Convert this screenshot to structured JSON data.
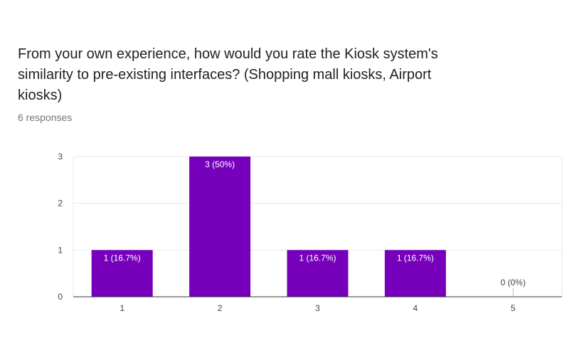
{
  "question": {
    "line1": "From your own experience, how would you rate the Kiosk system's",
    "line2": "similarity to pre-existing interfaces? (Shopping mall kiosks, Airport",
    "line3": "kiosks)"
  },
  "responses_label": "6 responses",
  "colors": {
    "bar": "#7600bc",
    "grid": "#e8e8e8",
    "axis": "#333333",
    "label_inside": "#ffffff",
    "label_outside": "#444444"
  },
  "chart_data": {
    "type": "bar",
    "categories": [
      "1",
      "2",
      "3",
      "4",
      "5"
    ],
    "values": [
      1,
      3,
      1,
      1,
      0
    ],
    "data_labels": [
      "1 (16.7%)",
      "3 (50%)",
      "1 (16.7%)",
      "1 (16.7%)",
      "0 (0%)"
    ],
    "y_ticks": [
      "0",
      "1",
      "2",
      "3"
    ],
    "ylim": [
      0,
      3
    ],
    "title": "",
    "xlabel": "",
    "ylabel": "",
    "grid": true,
    "legend": "none"
  }
}
